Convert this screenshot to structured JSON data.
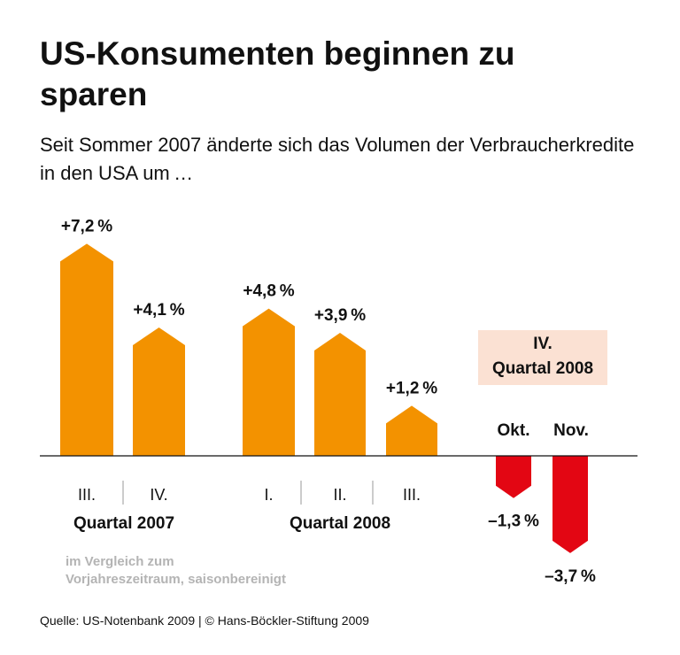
{
  "title": "US-Konsumenten beginnen zu sparen",
  "subtitle": "Seit Sommer 2007 änderte sich das Volumen der Verbraucherkredite in den USA um …",
  "note": "im Vergleich zum Vorjahreszeitraum, saisonbereinigt",
  "source": "Quelle: US-Notenbank 2009 | © Hans-Böckler-Stiftung 2009",
  "colors": {
    "positive": "#f39200",
    "negative": "#e30613",
    "highlight_box": "#fbe1d3"
  },
  "chart_data": {
    "type": "bar",
    "unit": "%",
    "categories": [
      "III.",
      "IV.",
      "I.",
      "II.",
      "III.",
      "Okt.",
      "Nov."
    ],
    "values": [
      7.2,
      4.1,
      4.8,
      3.9,
      1.2,
      -1.3,
      -3.7
    ],
    "data_labels": [
      "+7,2 %",
      "+4,1 %",
      "+4,8 %",
      "+3,9 %",
      "+1,2 %",
      "–1,3 %",
      "–3,7 %"
    ],
    "groups": [
      {
        "label": "Quartal 2007",
        "categories": [
          "III.",
          "IV."
        ]
      },
      {
        "label": "Quartal 2008",
        "categories": [
          "I.",
          "II.",
          "III."
        ]
      },
      {
        "label": "IV. Quartal 2008",
        "label_line1": "IV.",
        "label_line2": "Quartal 2008",
        "categories": [
          "Okt.",
          "Nov."
        ]
      }
    ]
  }
}
